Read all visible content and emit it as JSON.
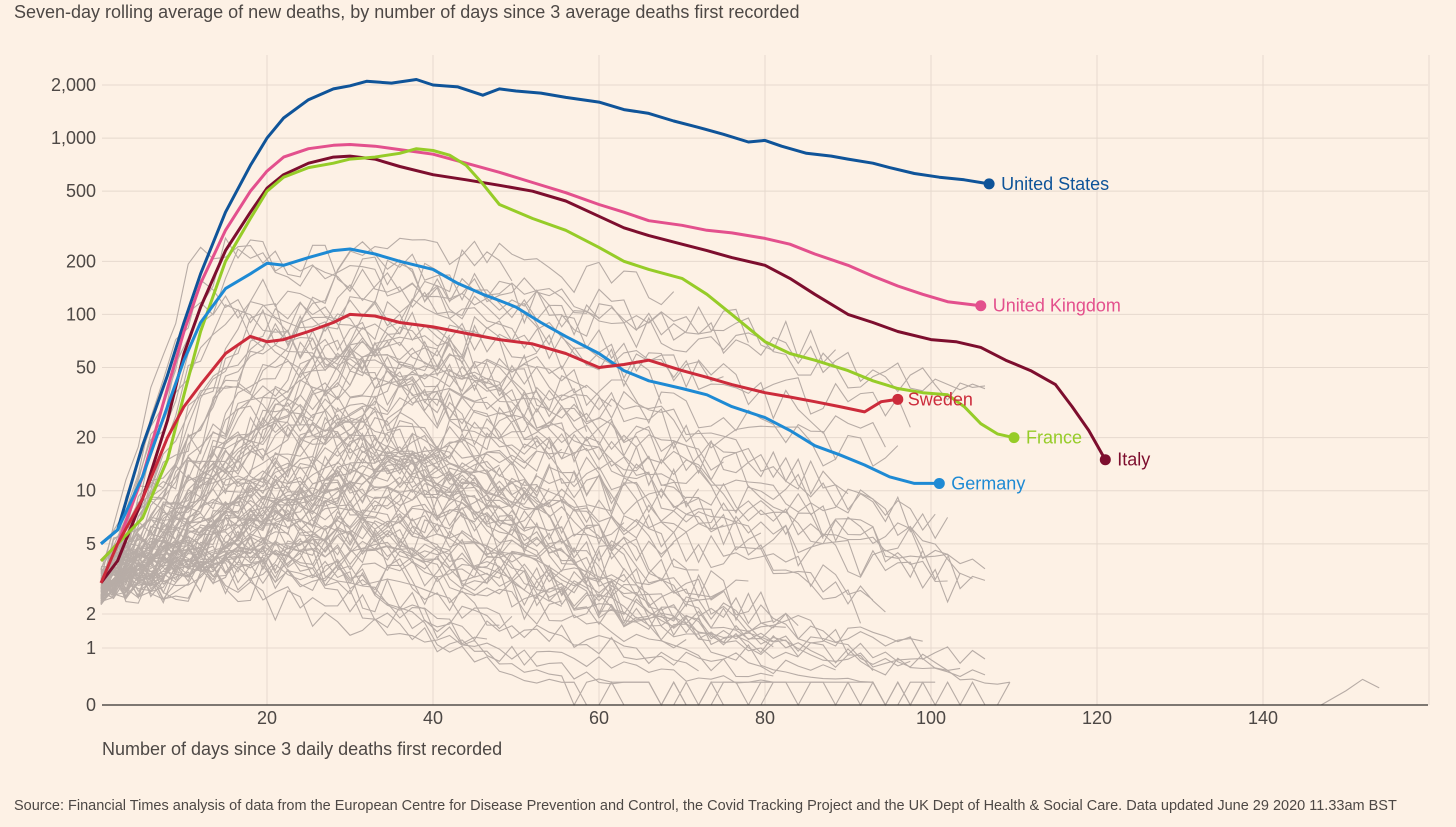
{
  "subtitle": "Seven-day rolling average of new deaths, by number of days since 3 average deaths first recorded",
  "source": "Source: Financial Times analysis of data from the European Centre for Disease Prevention and Control, the Covid Tracking Project and the UK Dept of Health & Social Care. Data updated June 29 2020 11.33am BST",
  "chart_data": {
    "type": "line",
    "subtitle": "Seven-day rolling average of new deaths, by number of days since 3 average deaths first recorded",
    "xlabel": "Number of days since 3 daily deaths first recorded",
    "ylabel": "",
    "yscale": "log (with linear section below 1)",
    "xlim": [
      0,
      160
    ],
    "ylim": [
      0,
      2500
    ],
    "x_ticks": [
      20,
      40,
      60,
      80,
      100,
      120,
      140
    ],
    "y_ticks": [
      0,
      1,
      2,
      5,
      10,
      20,
      50,
      100,
      200,
      500,
      1000,
      2000
    ],
    "y_tick_labels": [
      "0",
      "1",
      "2",
      "5",
      "10",
      "20",
      "50",
      "100",
      "200",
      "500",
      "1,000",
      "2,000"
    ],
    "grid": true,
    "colors": {
      "background": "#fdf1e5",
      "grid": "#e6d9ce",
      "other_countries": "#b7aca6"
    },
    "series": [
      {
        "name": "United States",
        "color": "#0f5499",
        "x": [
          0,
          2,
          5,
          8,
          10,
          12,
          15,
          18,
          20,
          22,
          25,
          28,
          30,
          32,
          35,
          38,
          40,
          43,
          46,
          48,
          50,
          53,
          56,
          60,
          63,
          66,
          69,
          72,
          75,
          78,
          80,
          82,
          85,
          88,
          90,
          93,
          95,
          98,
          101,
          104,
          107
        ],
        "y": [
          5,
          6,
          18,
          45,
          90,
          170,
          380,
          700,
          1000,
          1300,
          1650,
          1900,
          1980,
          2100,
          2050,
          2150,
          2000,
          1950,
          1750,
          1900,
          1850,
          1800,
          1700,
          1600,
          1450,
          1380,
          1250,
          1150,
          1050,
          950,
          970,
          900,
          820,
          790,
          760,
          720,
          680,
          630,
          600,
          580,
          550
        ]
      },
      {
        "name": "United Kingdom",
        "color": "#e3508d",
        "x": [
          0,
          2,
          5,
          8,
          10,
          12,
          15,
          18,
          20,
          22,
          25,
          28,
          30,
          33,
          36,
          40,
          44,
          48,
          52,
          56,
          60,
          63,
          66,
          70,
          73,
          76,
          80,
          83,
          86,
          90,
          93,
          96,
          99,
          102,
          104,
          106
        ],
        "y": [
          4,
          5,
          12,
          38,
          80,
          150,
          300,
          500,
          650,
          780,
          870,
          910,
          920,
          900,
          860,
          810,
          720,
          640,
          560,
          490,
          420,
          380,
          340,
          320,
          300,
          290,
          270,
          250,
          220,
          190,
          165,
          145,
          130,
          118,
          115,
          112
        ]
      },
      {
        "name": "Italy",
        "color": "#7d0e2e",
        "x": [
          0,
          2,
          5,
          8,
          10,
          12,
          15,
          18,
          20,
          22,
          25,
          28,
          30,
          33,
          36,
          40,
          44,
          48,
          52,
          56,
          60,
          63,
          66,
          70,
          73,
          76,
          80,
          83,
          86,
          90,
          93,
          96,
          100,
          103,
          106,
          109,
          112,
          115,
          117,
          119,
          121
        ],
        "y": [
          3,
          4,
          9,
          25,
          60,
          110,
          230,
          380,
          520,
          620,
          720,
          780,
          790,
          760,
          690,
          620,
          580,
          540,
          500,
          440,
          360,
          310,
          280,
          250,
          230,
          210,
          190,
          160,
          130,
          100,
          90,
          80,
          72,
          70,
          65,
          55,
          48,
          40,
          30,
          22,
          15
        ]
      },
      {
        "name": "France",
        "color": "#96cc28",
        "x": [
          0,
          2,
          5,
          8,
          10,
          12,
          15,
          18,
          20,
          22,
          25,
          28,
          30,
          33,
          36,
          38,
          40,
          42,
          44,
          46,
          48,
          52,
          56,
          60,
          63,
          66,
          70,
          73,
          76,
          80,
          83,
          86,
          90,
          93,
          96,
          99,
          102,
          104,
          106,
          108,
          110
        ],
        "y": [
          4,
          5,
          7,
          15,
          35,
          80,
          200,
          350,
          500,
          600,
          680,
          720,
          760,
          780,
          820,
          870,
          850,
          800,
          700,
          550,
          420,
          350,
          300,
          240,
          200,
          180,
          160,
          130,
          100,
          70,
          60,
          55,
          48,
          42,
          38,
          36,
          35,
          30,
          24,
          21,
          20
        ]
      },
      {
        "name": "Germany",
        "color": "#1e8ad4",
        "x": [
          0,
          2,
          5,
          8,
          10,
          12,
          15,
          18,
          20,
          22,
          25,
          28,
          30,
          33,
          36,
          40,
          43,
          46,
          48,
          50,
          53,
          56,
          60,
          63,
          66,
          70,
          73,
          76,
          80,
          83,
          86,
          89,
          92,
          95,
          98,
          101
        ],
        "y": [
          5,
          6,
          12,
          30,
          55,
          90,
          140,
          170,
          195,
          190,
          210,
          230,
          235,
          220,
          200,
          180,
          150,
          130,
          120,
          110,
          90,
          75,
          60,
          48,
          42,
          38,
          35,
          30,
          26,
          22,
          18,
          16,
          14,
          12,
          11,
          11
        ]
      },
      {
        "name": "Sweden",
        "color": "#cc2b3b",
        "x": [
          0,
          2,
          5,
          8,
          10,
          12,
          15,
          18,
          20,
          22,
          25,
          28,
          30,
          33,
          36,
          40,
          44,
          48,
          52,
          56,
          60,
          63,
          66,
          70,
          73,
          76,
          80,
          83,
          86,
          89,
          92,
          94,
          96
        ],
        "y": [
          3,
          5,
          9,
          20,
          30,
          40,
          60,
          75,
          70,
          72,
          80,
          90,
          100,
          98,
          90,
          85,
          78,
          72,
          68,
          60,
          50,
          52,
          55,
          48,
          44,
          40,
          36,
          34,
          32,
          30,
          28,
          32,
          33
        ]
      }
    ],
    "other_series_note": ""
  },
  "x_axis_title": "Number of days since 3 daily deaths first recorded"
}
